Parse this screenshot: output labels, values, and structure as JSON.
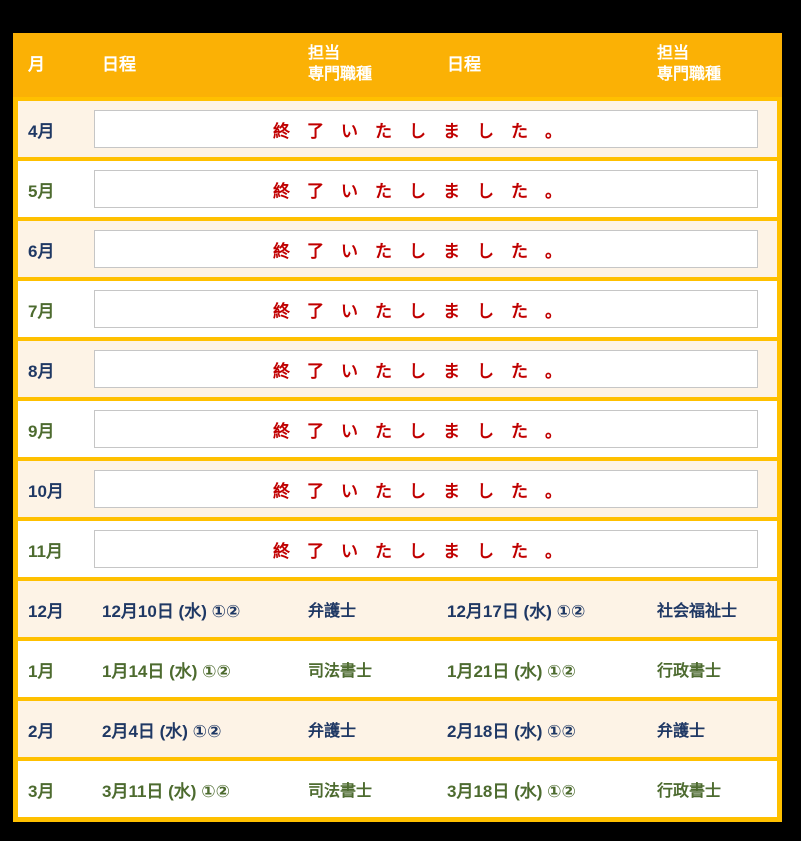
{
  "table": {
    "header": {
      "month": "月",
      "schedule_left": "日程",
      "staff_left": "担当\n専門職種",
      "schedule_right": "日程",
      "staff_right": "担当\n専門職種"
    },
    "closed_message": "終了いたしました。",
    "rows": [
      {
        "month": "4月",
        "status": "closed"
      },
      {
        "month": "5月",
        "status": "closed"
      },
      {
        "month": "6月",
        "status": "closed"
      },
      {
        "month": "7月",
        "status": "closed"
      },
      {
        "month": "8月",
        "status": "closed"
      },
      {
        "month": "9月",
        "status": "closed"
      },
      {
        "month": "10月",
        "status": "closed"
      },
      {
        "month": "11月",
        "status": "closed"
      },
      {
        "month": "12月",
        "status": "open",
        "date_left": "12月10日 (水) ①②",
        "staff_left": "弁護士",
        "date_right": "12月17日 (水) ①②",
        "staff_right": "社会福祉士"
      },
      {
        "month": "1月",
        "status": "open",
        "date_left": "1月14日 (水) ①②",
        "staff_left": "司法書士",
        "date_right": "1月21日 (水) ①②",
        "staff_right": "行政書士"
      },
      {
        "month": "2月",
        "status": "open",
        "date_left": "2月4日 (水) ①②",
        "staff_left": "弁護士",
        "date_right": "2月18日 (水) ①②",
        "staff_right": "弁護士"
      },
      {
        "month": "3月",
        "status": "open",
        "date_left": "3月11日 (水) ①②",
        "staff_left": "司法書士",
        "date_right": "3月18日 (水) ①②",
        "staff_right": "行政書士"
      }
    ],
    "colors": {
      "frame_gold": "#FFC000",
      "header_gold": "#FBB105",
      "row_cream": "#FDF3E6",
      "row_white": "#FFFFFF",
      "text_navy": "#1F3864",
      "text_green": "#4D6B2F",
      "closed_red": "#C00000",
      "box_border_gray": "#C6C6C6"
    }
  }
}
